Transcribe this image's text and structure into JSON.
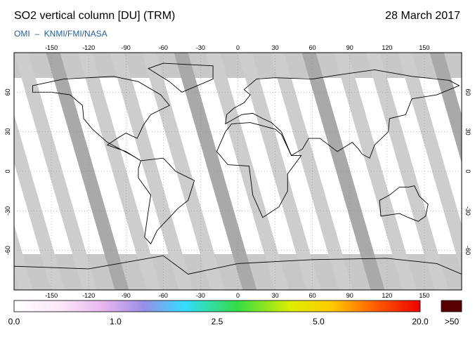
{
  "header": {
    "title": "SO2 vertical column [DU] (TRM)",
    "date": "28 March 2017",
    "source": "OMI  –  KNMI/FMI/NASA"
  },
  "map": {
    "lon_ticks": [
      -150,
      -120,
      -90,
      -60,
      -30,
      0,
      30,
      60,
      90,
      120,
      150
    ],
    "lat_ticks": [
      60,
      30,
      0,
      -30,
      -60
    ]
  },
  "colorbar": {
    "labels": [
      "0.0",
      "1.0",
      "2.5",
      "5.0",
      "20.0"
    ],
    "overflow_label": ">50"
  }
}
